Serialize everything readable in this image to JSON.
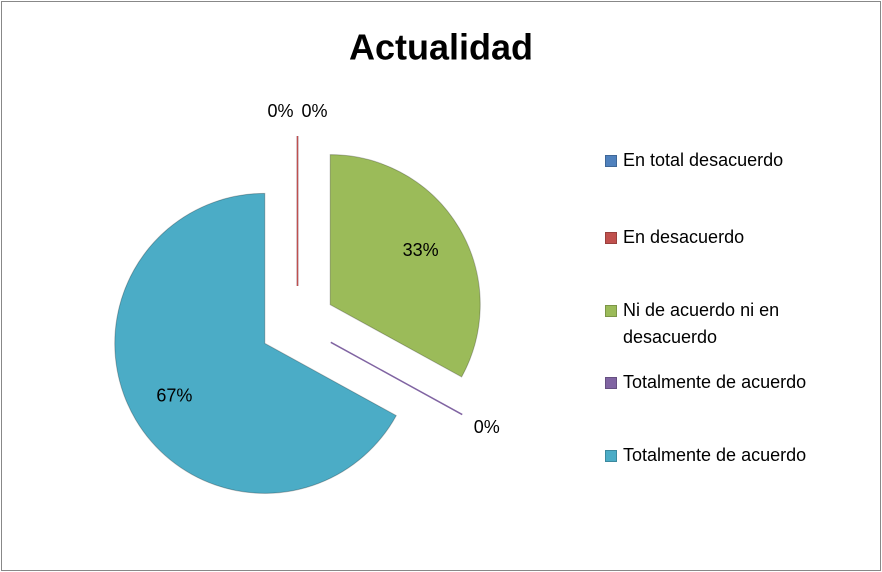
{
  "chart_data": {
    "type": "pie",
    "title": "Actualidad",
    "categories": [
      "En total desacuerdo",
      "En desacuerdo",
      "Ni de acuerdo ni en desacuerdo",
      "Totalmente de acuerdo",
      "Totalmente de acuerdo"
    ],
    "values": [
      0,
      0,
      33,
      0,
      67
    ],
    "value_labels": [
      "0%",
      "0%",
      "33%",
      "0%",
      "67%"
    ],
    "colors": [
      "#4f81bd",
      "#c0504d",
      "#9bbb59",
      "#8064a2",
      "#4bacc6"
    ],
    "legend": "right"
  }
}
